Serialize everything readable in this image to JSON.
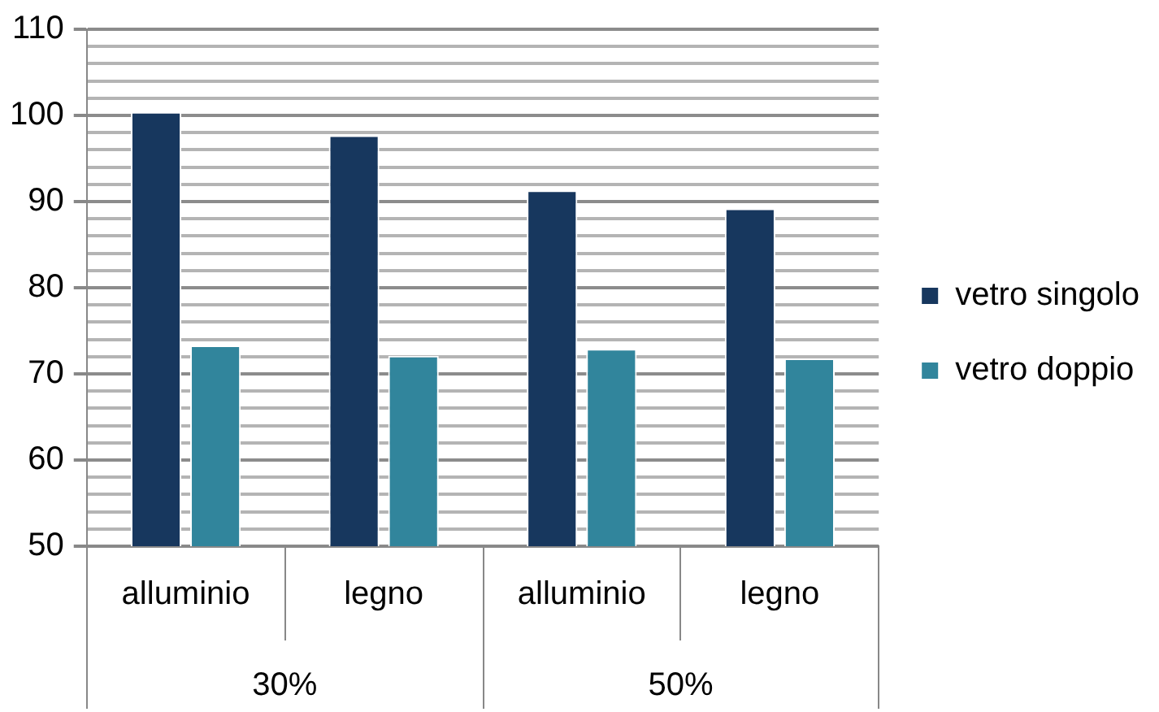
{
  "chart_data": {
    "type": "bar",
    "categories": [
      "alluminio",
      "legno",
      "alluminio",
      "legno"
    ],
    "series": [
      {
        "name": "vetro singolo",
        "color": "#17375e",
        "values": [
          100.4,
          97.7,
          91.3,
          89.2
        ]
      },
      {
        "name": "vetro doppio",
        "color": "#31859c",
        "values": [
          73.3,
          72.1,
          72.9,
          71.8
        ]
      }
    ],
    "ylim": [
      50,
      110
    ],
    "yticks": [
      50,
      {
        "value": 52,
        "label": null
      },
      {
        "value": 54,
        "label": null
      },
      {
        "value": 56,
        "label": null
      },
      {
        "value": 58,
        "label": null
      },
      60,
      {
        "value": 62,
        "label": null
      },
      {
        "value": 64,
        "label": null
      },
      {
        "value": 66,
        "label": null
      },
      {
        "value": 68,
        "label": null
      },
      70,
      {
        "value": 72,
        "label": null
      },
      {
        "value": 74,
        "label": null
      },
      {
        "value": 76,
        "label": null
      },
      {
        "value": 78,
        "label": null
      },
      80,
      {
        "value": 82,
        "label": null
      },
      {
        "value": 84,
        "label": null
      },
      {
        "value": 86,
        "label": null
      },
      {
        "value": 88,
        "label": null
      },
      90,
      {
        "value": 92,
        "label": null
      },
      {
        "value": 94,
        "label": null
      },
      {
        "value": 96,
        "label": null
      },
      {
        "value": 98,
        "label": null
      },
      100,
      {
        "value": 102,
        "label": null
      },
      {
        "value": 104,
        "label": null
      },
      {
        "value": 106,
        "label": null
      },
      {
        "value": 108,
        "label": null
      },
      110
    ],
    "grid": "y",
    "legend": "right",
    "annotations": [
      "30%",
      "50%"
    ]
  }
}
